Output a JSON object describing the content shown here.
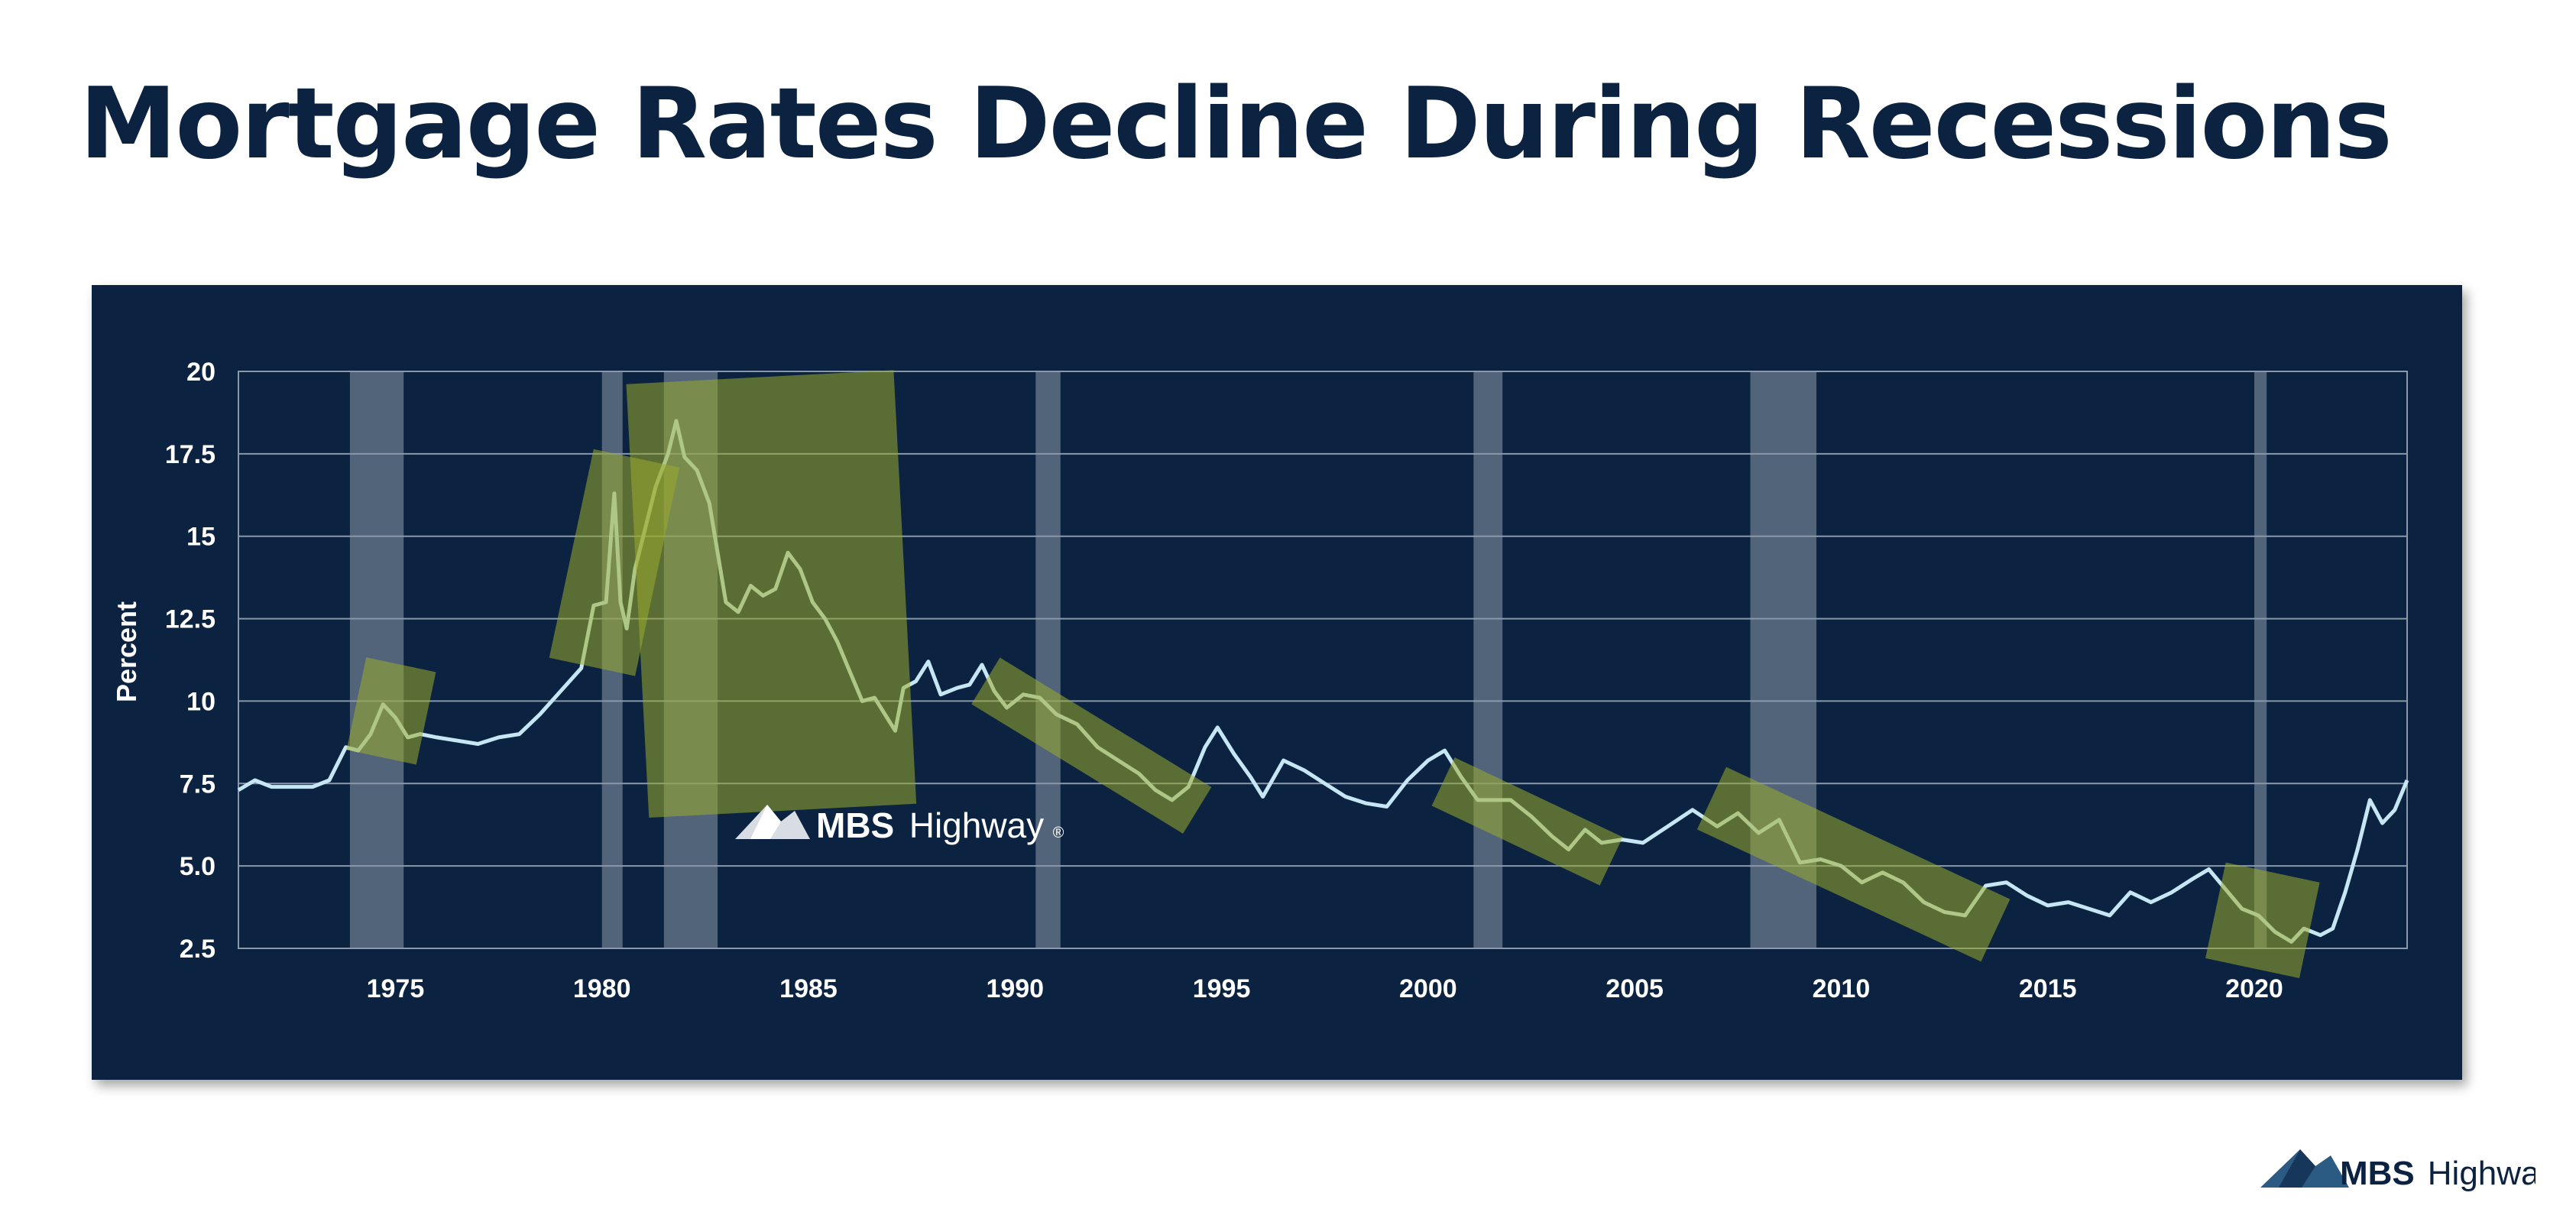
{
  "page": {
    "title": "Mortgage Rates Decline During Recessions"
  },
  "brand": {
    "name_bold": "MBS",
    "name_light": "Highway",
    "mark": "®"
  },
  "colors": {
    "panel": "#0b2340",
    "line": "#c6e6f4",
    "recession": "#5a6b80",
    "highlight": "#9aac2c",
    "title": "#0b2340",
    "grid": "#8a98aa"
  },
  "chart_data": {
    "type": "line",
    "ylabel": "Percent",
    "xlabel": "",
    "xlim": [
      1971.2,
      2023.7
    ],
    "ylim": [
      2.5,
      20
    ],
    "x_ticks": [
      1975,
      1980,
      1985,
      1990,
      1995,
      2000,
      2005,
      2010,
      2015,
      2020
    ],
    "y_ticks": [
      {
        "v": 2.5,
        "label": "2.5"
      },
      {
        "v": 5,
        "label": "5.0"
      },
      {
        "v": 7.5,
        "label": "7.5"
      },
      {
        "v": 10,
        "label": "10"
      },
      {
        "v": 12.5,
        "label": "12.5"
      },
      {
        "v": 15,
        "label": "15"
      },
      {
        "v": 17.5,
        "label": "17.5"
      },
      {
        "v": 20,
        "label": "20"
      }
    ],
    "grid": true,
    "recessions": [
      [
        1973.9,
        1975.2
      ],
      [
        1980.0,
        1980.5
      ],
      [
        1981.5,
        1982.8
      ],
      [
        1990.5,
        1991.1
      ],
      [
        2001.1,
        2001.8
      ],
      [
        2007.8,
        2009.4
      ],
      [
        2020.0,
        2020.3
      ]
    ],
    "highlights": [
      {
        "x1": 1974.5,
        "x2": 1975.3,
        "ylo": 9.1,
        "yhi": 10.3
      },
      {
        "x1": 1979.7,
        "x2": 1980.9,
        "ylo": 11.8,
        "yhi": 16.6
      },
      {
        "x1": 1981.1,
        "x2": 1987.1,
        "ylo": 7.5,
        "yhi": 19.0
      },
      {
        "x1": 1989.7,
        "x2": 1994.0,
        "ylo": 7.0,
        "yhi": 10.3
      },
      {
        "x1": 2000.8,
        "x2": 2004.0,
        "ylo": 5.4,
        "yhi": 7.3
      },
      {
        "x1": 2007.3,
        "x2": 2013.3,
        "ylo": 3.3,
        "yhi": 6.8
      },
      {
        "x1": 2019.5,
        "x2": 2020.9,
        "ylo": 2.7,
        "yhi": 4.0
      }
    ],
    "series": [
      {
        "values": [
          [
            1971.2,
            7.3
          ],
          [
            1971.6,
            7.6
          ],
          [
            1972.0,
            7.4
          ],
          [
            1972.5,
            7.4
          ],
          [
            1973.0,
            7.4
          ],
          [
            1973.4,
            7.6
          ],
          [
            1973.8,
            8.6
          ],
          [
            1974.1,
            8.5
          ],
          [
            1974.4,
            9.0
          ],
          [
            1974.7,
            9.9
          ],
          [
            1975.0,
            9.5
          ],
          [
            1975.3,
            8.9
          ],
          [
            1975.6,
            9.0
          ],
          [
            1976.0,
            8.9
          ],
          [
            1976.5,
            8.8
          ],
          [
            1977.0,
            8.7
          ],
          [
            1977.5,
            8.9
          ],
          [
            1978.0,
            9.0
          ],
          [
            1978.5,
            9.6
          ],
          [
            1979.0,
            10.3
          ],
          [
            1979.5,
            11.0
          ],
          [
            1979.8,
            12.9
          ],
          [
            1980.1,
            13.0
          ],
          [
            1980.3,
            16.3
          ],
          [
            1980.45,
            13.0
          ],
          [
            1980.6,
            12.2
          ],
          [
            1980.8,
            14.0
          ],
          [
            1981.0,
            15.0
          ],
          [
            1981.3,
            16.5
          ],
          [
            1981.6,
            17.5
          ],
          [
            1981.8,
            18.5
          ],
          [
            1982.0,
            17.4
          ],
          [
            1982.3,
            17.0
          ],
          [
            1982.6,
            16.0
          ],
          [
            1982.8,
            14.5
          ],
          [
            1983.0,
            13.0
          ],
          [
            1983.3,
            12.7
          ],
          [
            1983.6,
            13.5
          ],
          [
            1983.9,
            13.2
          ],
          [
            1984.2,
            13.4
          ],
          [
            1984.5,
            14.5
          ],
          [
            1984.8,
            14.0
          ],
          [
            1985.1,
            13.0
          ],
          [
            1985.4,
            12.5
          ],
          [
            1985.7,
            11.8
          ],
          [
            1986.0,
            10.9
          ],
          [
            1986.3,
            10.0
          ],
          [
            1986.6,
            10.1
          ],
          [
            1986.9,
            9.5
          ],
          [
            1987.1,
            9.1
          ],
          [
            1987.3,
            10.4
          ],
          [
            1987.6,
            10.6
          ],
          [
            1987.9,
            11.2
          ],
          [
            1988.2,
            10.2
          ],
          [
            1988.6,
            10.4
          ],
          [
            1988.9,
            10.5
          ],
          [
            1989.2,
            11.1
          ],
          [
            1989.5,
            10.3
          ],
          [
            1989.8,
            9.8
          ],
          [
            1990.2,
            10.2
          ],
          [
            1990.6,
            10.1
          ],
          [
            1991.0,
            9.6
          ],
          [
            1991.5,
            9.3
          ],
          [
            1992.0,
            8.6
          ],
          [
            1992.5,
            8.2
          ],
          [
            1993.0,
            7.8
          ],
          [
            1993.4,
            7.3
          ],
          [
            1993.8,
            7.0
          ],
          [
            1994.2,
            7.4
          ],
          [
            1994.6,
            8.6
          ],
          [
            1994.9,
            9.2
          ],
          [
            1995.3,
            8.4
          ],
          [
            1995.7,
            7.7
          ],
          [
            1996.0,
            7.1
          ],
          [
            1996.5,
            8.2
          ],
          [
            1997.0,
            7.9
          ],
          [
            1997.5,
            7.5
          ],
          [
            1998.0,
            7.1
          ],
          [
            1998.5,
            6.9
          ],
          [
            1999.0,
            6.8
          ],
          [
            1999.5,
            7.6
          ],
          [
            2000.0,
            8.2
          ],
          [
            2000.4,
            8.5
          ],
          [
            2000.8,
            7.7
          ],
          [
            2001.2,
            7.0
          ],
          [
            2001.6,
            7.0
          ],
          [
            2002.0,
            7.0
          ],
          [
            2002.5,
            6.5
          ],
          [
            2003.0,
            5.9
          ],
          [
            2003.4,
            5.5
          ],
          [
            2003.8,
            6.1
          ],
          [
            2004.2,
            5.7
          ],
          [
            2004.7,
            5.8
          ],
          [
            2005.2,
            5.7
          ],
          [
            2005.8,
            6.2
          ],
          [
            2006.4,
            6.7
          ],
          [
            2007.0,
            6.2
          ],
          [
            2007.5,
            6.6
          ],
          [
            2008.0,
            6.0
          ],
          [
            2008.5,
            6.4
          ],
          [
            2009.0,
            5.1
          ],
          [
            2009.5,
            5.2
          ],
          [
            2010.0,
            5.0
          ],
          [
            2010.5,
            4.5
          ],
          [
            2011.0,
            4.8
          ],
          [
            2011.5,
            4.5
          ],
          [
            2012.0,
            3.9
          ],
          [
            2012.5,
            3.6
          ],
          [
            2013.0,
            3.5
          ],
          [
            2013.5,
            4.4
          ],
          [
            2014.0,
            4.5
          ],
          [
            2014.5,
            4.1
          ],
          [
            2015.0,
            3.8
          ],
          [
            2015.5,
            3.9
          ],
          [
            2016.0,
            3.7
          ],
          [
            2016.5,
            3.5
          ],
          [
            2017.0,
            4.2
          ],
          [
            2017.5,
            3.9
          ],
          [
            2018.0,
            4.2
          ],
          [
            2018.5,
            4.6
          ],
          [
            2018.9,
            4.9
          ],
          [
            2019.3,
            4.3
          ],
          [
            2019.7,
            3.7
          ],
          [
            2020.1,
            3.5
          ],
          [
            2020.5,
            3.0
          ],
          [
            2020.9,
            2.7
          ],
          [
            2021.2,
            3.1
          ],
          [
            2021.6,
            2.9
          ],
          [
            2021.9,
            3.1
          ],
          [
            2022.2,
            4.2
          ],
          [
            2022.5,
            5.5
          ],
          [
            2022.8,
            7.0
          ],
          [
            2023.1,
            6.3
          ],
          [
            2023.4,
            6.7
          ],
          [
            2023.7,
            7.6
          ]
        ]
      }
    ]
  }
}
